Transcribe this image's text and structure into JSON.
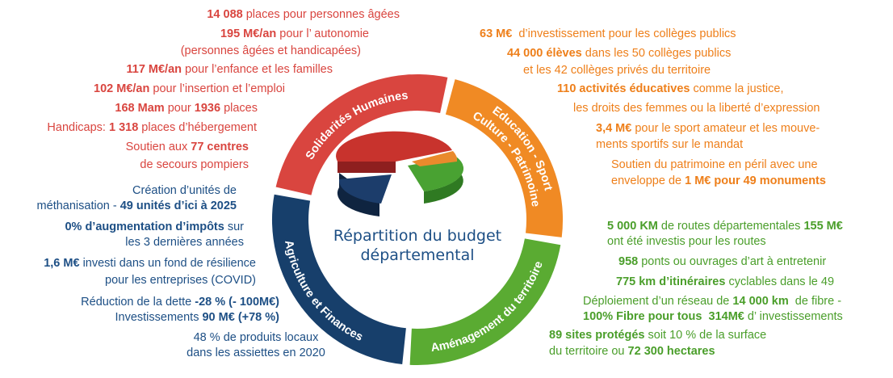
{
  "center_title": [
    "Répartition du budget",
    "départemental"
  ],
  "sections": [
    {
      "title": [
        "Solidarités Humaines"
      ],
      "lines": [
        [
          {
            "bold": "14 088"
          },
          {
            "text": " places pour personnes âgées"
          }
        ],
        [
          {
            "bold": "195 M€/an"
          },
          {
            "text": " pour l’ autonomie"
          }
        ],
        [
          {
            "text": "(personnes âgées et handicapées)"
          }
        ],
        [
          {
            "bold": "117 M€/an"
          },
          {
            "text": " pour l’enfance et les familles"
          }
        ],
        [
          {
            "bold": "102 M€/an"
          },
          {
            "text": " pour l’insertion et l’emploi"
          }
        ],
        [
          {
            "bold": "168 Mam"
          },
          {
            "text": " pour "
          },
          {
            "bold": "1936"
          },
          {
            "text": " places"
          }
        ],
        [
          {
            "text": "Handicaps: "
          },
          {
            "bold": "1 318"
          },
          {
            "text": " places d’hébergement"
          }
        ],
        [
          {
            "text": "Soutien aux "
          },
          {
            "bold": "77 centres"
          }
        ],
        [
          {
            "text": "de secours pompiers"
          }
        ]
      ]
    },
    {
      "title": [
        "Education - Sport",
        "Culture - Patrimoine"
      ],
      "lines": [
        [
          {
            "bold": "63 M€"
          },
          {
            "text": "  d’investissement pour les collèges publics"
          }
        ],
        [
          {
            "bold": "44 000 élèves"
          },
          {
            "text": " dans les 50 collèges publics"
          }
        ],
        [
          {
            "text": "et les 42 collèges privés du territoire"
          }
        ],
        [
          {
            "bold": "110 activités éducatives"
          },
          {
            "text": " comme la justice,"
          }
        ],
        [
          {
            "text": "les droits des femmes ou la liberté d’expression"
          }
        ],
        [
          {
            "bold": "3,4 M€"
          },
          {
            "text": " pour le sport amateur et les mouve-"
          }
        ],
        [
          {
            "text": "ments sportifs sur le mandat"
          }
        ],
        [
          {
            "text": "Soutien du patrimoine en péril avec une"
          }
        ],
        [
          {
            "text": "enveloppe de "
          },
          {
            "bold": "1 M€ pour 49 monuments"
          }
        ]
      ]
    },
    {
      "title": [
        "Aménagement du territoire"
      ],
      "lines": [
        [
          {
            "bold": "5 000 KM"
          },
          {
            "text": " de routes départementales "
          },
          {
            "bold": "155 M€"
          }
        ],
        [
          {
            "text": "ont été investis pour les routes"
          }
        ],
        [
          {
            "bold": "958"
          },
          {
            "text": " ponts ou ouvrages d’art à entretenir"
          }
        ],
        [
          {
            "bold": "775 km d’itinéraires"
          },
          {
            "text": " cyclables dans le 49"
          }
        ],
        [
          {
            "text": "Déploiement d’un réseau de "
          },
          {
            "bold": "14 000 km"
          },
          {
            "text": "  de fibre -"
          }
        ],
        [
          {
            "bold": "100% Fibre pour tous  314M€"
          },
          {
            "text": " d’ investissements"
          }
        ],
        [
          {
            "bold": "89 sites protégés"
          },
          {
            "text": " soit 10 % de la surface"
          }
        ],
        [
          {
            "text": "du territoire ou "
          },
          {
            "bold": "72 300 hectares"
          }
        ]
      ]
    },
    {
      "title": [
        "Agriculture et Finances"
      ],
      "lines": [
        [
          {
            "text": "Création d’unités de"
          }
        ],
        [
          {
            "text": "méthanisation - "
          },
          {
            "bold": "49 unités d’ici à 2025"
          }
        ],
        [
          {
            "bold": "0% d’augmentation d’impôts"
          },
          {
            "text": " sur"
          }
        ],
        [
          {
            "text": "les 3 dernières années"
          }
        ],
        [
          {
            "bold": "1,6 M€"
          },
          {
            "text": " investi dans un fond de résilience"
          }
        ],
        [
          {
            "text": "pour les entreprises (COVID)"
          }
        ],
        [
          {
            "text": "Réduction de la dette "
          },
          {
            "bold": "-28 % (- 100M€)"
          }
        ],
        [
          {
            "text": "Investissements "
          },
          {
            "bold": "90 M€ (+78 %)"
          }
        ],
        [
          {
            "text": "48 % de produits locaux"
          }
        ],
        [
          {
            "text": "dans les assiettes en 2020"
          }
        ]
      ]
    }
  ]
}
